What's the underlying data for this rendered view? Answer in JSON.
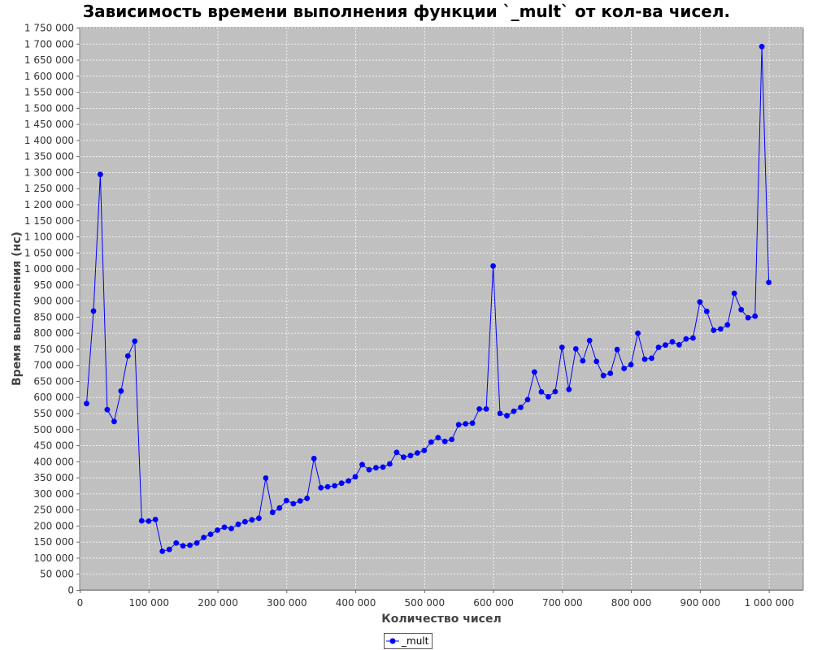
{
  "chart_data": {
    "type": "line",
    "title": "Зависимость времени выполнения функции `_mult` от кол-ва чисел.",
    "xlabel": "Количество чисел",
    "ylabel": "Время выполнения (нс)",
    "xlim": [
      0,
      1050000
    ],
    "ylim": [
      0,
      1750000
    ],
    "x_ticks": [
      0,
      100000,
      200000,
      300000,
      400000,
      500000,
      600000,
      700000,
      800000,
      900000,
      1000000
    ],
    "x_tick_labels": [
      "0",
      "100 000",
      "200 000",
      "300 000",
      "400 000",
      "500 000",
      "600 000",
      "700 000",
      "800 000",
      "900 000",
      "1 000 000"
    ],
    "y_ticks": [
      0,
      50000,
      100000,
      150000,
      200000,
      250000,
      300000,
      350000,
      400000,
      450000,
      500000,
      550000,
      600000,
      650000,
      700000,
      750000,
      800000,
      850000,
      900000,
      950000,
      1000000,
      1050000,
      1100000,
      1150000,
      1200000,
      1250000,
      1300000,
      1350000,
      1400000,
      1450000,
      1500000,
      1550000,
      1600000,
      1650000,
      1700000,
      1750000
    ],
    "y_tick_labels": [
      "0",
      "50 000",
      "100 000",
      "150 000",
      "200 000",
      "250 000",
      "300 000",
      "350 000",
      "400 000",
      "450 000",
      "500 000",
      "550 000",
      "600 000",
      "650 000",
      "700 000",
      "750 000",
      "800 000",
      "850 000",
      "900 000",
      "950 000",
      "1 000 000",
      "1 050 000",
      "1 100 000",
      "1 150 000",
      "1 200 000",
      "1 250 000",
      "1 300 000",
      "1 350 000",
      "1 400 000",
      "1 450 000",
      "1 500 000",
      "1 550 000",
      "1 600 000",
      "1 650 000",
      "1 700 000",
      "1 750 000"
    ],
    "grid": true,
    "legend_position": "bottom-center",
    "colors": {
      "series": "#0000ff",
      "plot_background": "#c0c0c0",
      "grid": "#ffffff"
    },
    "series": [
      {
        "name": "_mult",
        "x": [
          10000,
          20000,
          30000,
          40000,
          50000,
          60000,
          70000,
          80000,
          90000,
          100000,
          110000,
          120000,
          130000,
          140000,
          150000,
          160000,
          170000,
          180000,
          190000,
          200000,
          210000,
          220000,
          230000,
          240000,
          250000,
          260000,
          270000,
          280000,
          290000,
          300000,
          310000,
          320000,
          330000,
          340000,
          350000,
          360000,
          370000,
          380000,
          390000,
          400000,
          410000,
          420000,
          430000,
          440000,
          450000,
          460000,
          470000,
          480000,
          490000,
          500000,
          510000,
          520000,
          530000,
          540000,
          550000,
          560000,
          570000,
          580000,
          590000,
          600000,
          610000,
          620000,
          630000,
          640000,
          650000,
          660000,
          670000,
          680000,
          690000,
          700000,
          710000,
          720000,
          730000,
          740000,
          750000,
          760000,
          770000,
          780000,
          790000,
          800000,
          810000,
          820000,
          830000,
          840000,
          850000,
          860000,
          870000,
          880000,
          890000,
          900000,
          910000,
          920000,
          930000,
          940000,
          950000,
          960000,
          970000,
          980000,
          990000,
          1000000
        ],
        "values": [
          580000,
          868000,
          1293000,
          561000,
          524000,
          619000,
          728000,
          774000,
          215000,
          214000,
          219000,
          120000,
          126000,
          146000,
          137000,
          139000,
          146000,
          163000,
          173000,
          186000,
          195000,
          191000,
          204000,
          212000,
          218000,
          223000,
          348000,
          241000,
          255000,
          278000,
          268000,
          277000,
          285000,
          409000,
          318000,
          321000,
          324000,
          332000,
          339000,
          352000,
          390000,
          374000,
          380000,
          382000,
          392000,
          428000,
          413000,
          418000,
          426000,
          434000,
          460000,
          474000,
          462000,
          468000,
          514000,
          517000,
          519000,
          563000,
          563000,
          1008000,
          549000,
          542000,
          556000,
          568000,
          592000,
          678000,
          616000,
          601000,
          617000,
          755000,
          624000,
          750000,
          713000,
          776000,
          711000,
          667000,
          674000,
          748000,
          689000,
          701000,
          799000,
          718000,
          721000,
          755000,
          762000,
          772000,
          763000,
          781000,
          784000,
          896000,
          867000,
          808000,
          812000,
          825000,
          923000,
          872000,
          847000,
          852000,
          1691000,
          957000
        ]
      }
    ]
  }
}
